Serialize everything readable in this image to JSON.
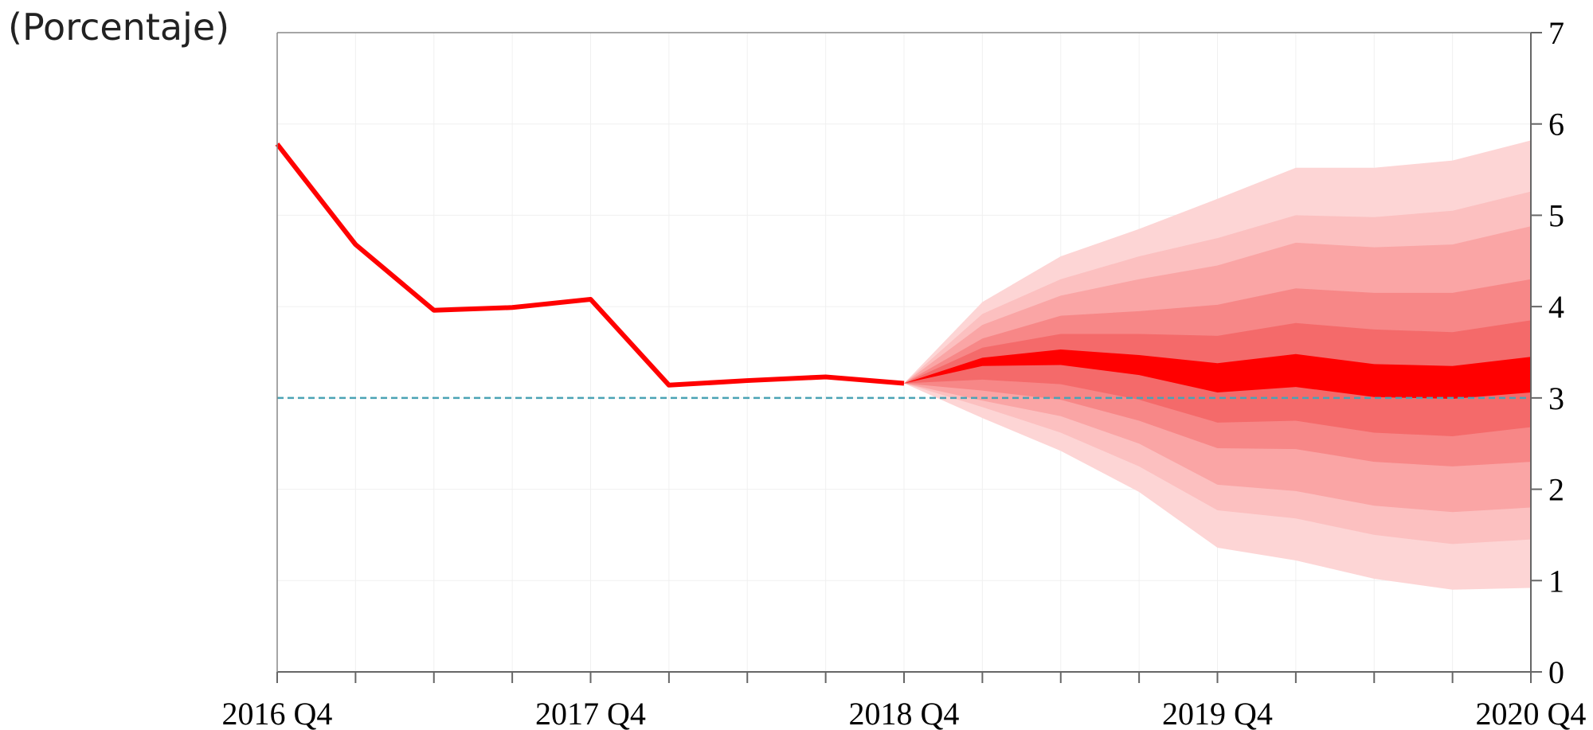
{
  "chart_data": {
    "type": "fan",
    "title": "(Porcentaje)",
    "categories": [
      "2016 Q4",
      null,
      null,
      null,
      "2017 Q4",
      null,
      null,
      null,
      "2018 Q4",
      null,
      null,
      null,
      "2019 Q4",
      null,
      null,
      null,
      "2020 Q4"
    ],
    "series": [
      {
        "name": null,
        "color": "#ff0000",
        "values": [
          5.78,
          4.68,
          3.96,
          3.99,
          4.08,
          3.14,
          3.19,
          3.23,
          3.16,
          null,
          null,
          null,
          null,
          null,
          null,
          null,
          null
        ]
      }
    ],
    "bands": [
      {
        "color": "#fdd5d5",
        "lower": [
          null,
          null,
          null,
          null,
          null,
          null,
          null,
          null,
          3.16,
          2.78,
          2.42,
          1.97,
          1.36,
          1.22,
          1.02,
          0.9,
          0.92
        ],
        "upper": [
          null,
          null,
          null,
          null,
          null,
          null,
          null,
          null,
          3.16,
          4.05,
          4.55,
          4.85,
          5.18,
          5.52,
          5.52,
          5.6,
          5.82
        ]
      },
      {
        "color": "#fcc0c0",
        "lower": [
          null,
          null,
          null,
          null,
          null,
          null,
          null,
          null,
          3.16,
          2.9,
          2.62,
          2.25,
          1.77,
          1.68,
          1.5,
          1.4,
          1.45
        ],
        "upper": [
          null,
          null,
          null,
          null,
          null,
          null,
          null,
          null,
          3.16,
          3.92,
          4.3,
          4.55,
          4.75,
          5.0,
          4.98,
          5.05,
          5.26
        ]
      },
      {
        "color": "#faa5a5",
        "lower": [
          null,
          null,
          null,
          null,
          null,
          null,
          null,
          null,
          3.16,
          2.97,
          2.8,
          2.5,
          2.05,
          1.98,
          1.82,
          1.75,
          1.8
        ],
        "upper": [
          null,
          null,
          null,
          null,
          null,
          null,
          null,
          null,
          3.16,
          3.8,
          4.12,
          4.3,
          4.45,
          4.7,
          4.65,
          4.68,
          4.88
        ]
      },
      {
        "color": "#f78787",
        "lower": [
          null,
          null,
          null,
          null,
          null,
          null,
          null,
          null,
          3.16,
          3.08,
          2.98,
          2.75,
          2.45,
          2.44,
          2.3,
          2.25,
          2.3
        ],
        "upper": [
          null,
          null,
          null,
          null,
          null,
          null,
          null,
          null,
          3.16,
          3.65,
          3.9,
          3.95,
          4.02,
          4.2,
          4.15,
          4.15,
          4.3
        ]
      },
      {
        "color": "#f46a6a",
        "lower": [
          null,
          null,
          null,
          null,
          null,
          null,
          null,
          null,
          3.16,
          3.2,
          3.15,
          2.98,
          2.73,
          2.75,
          2.62,
          2.58,
          2.68
        ],
        "upper": [
          null,
          null,
          null,
          null,
          null,
          null,
          null,
          null,
          3.16,
          3.55,
          3.7,
          3.7,
          3.68,
          3.82,
          3.75,
          3.72,
          3.85
        ]
      },
      {
        "color": "#ff0000",
        "lower": [
          null,
          null,
          null,
          null,
          null,
          null,
          null,
          null,
          3.16,
          3.35,
          3.36,
          3.25,
          3.06,
          3.12,
          3.01,
          2.99,
          3.06
        ],
        "upper": [
          null,
          null,
          null,
          null,
          null,
          null,
          null,
          null,
          3.16,
          3.44,
          3.53,
          3.47,
          3.38,
          3.48,
          3.37,
          3.35,
          3.45
        ]
      }
    ],
    "reference_line": {
      "value": 3,
      "color": "#4aa3b5"
    },
    "ylim": [
      0,
      7
    ],
    "yticks": [
      0,
      1,
      2,
      3,
      4,
      5,
      6,
      7
    ],
    "y_axis_side": "right",
    "grid": true
  }
}
